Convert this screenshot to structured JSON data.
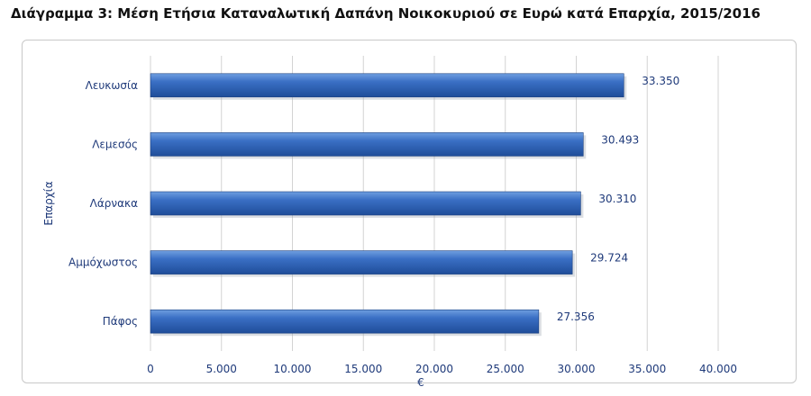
{
  "page": {
    "title": "Διάγραμμα 3: Μέση Ετήσια Καταναλωτική Δαπάνη Νοικοκυριού σε Ευρώ κατά Επαρχία, 2015/2016"
  },
  "chart_data": {
    "type": "bar",
    "orientation": "horizontal",
    "title": "Διάγραμμα 3: Μέση Ετήσια Καταναλωτική Δαπάνη Νοικοκυριού σε Ευρώ κατά Επαρχία, 2015/2016",
    "categories": [
      "Λευκωσία",
      "Λεμεσός",
      "Λάρνακα",
      "Αμμόχωστος",
      "Πάφος"
    ],
    "values": [
      33350,
      30493,
      30310,
      29724,
      27356
    ],
    "value_labels": [
      "33.350",
      "30.493",
      "30.310",
      "29.724",
      "27.356"
    ],
    "xlabel": "€",
    "ylabel": "Επαρχία",
    "xlim": [
      0,
      40000
    ],
    "x_ticks": [
      0,
      5000,
      10000,
      15000,
      20000,
      25000,
      30000,
      35000,
      40000
    ],
    "x_tick_labels": [
      "0",
      "5.000",
      "10.000",
      "15.000",
      "20.000",
      "25.000",
      "30.000",
      "35.000",
      "40.000"
    ],
    "grid": true,
    "colors": {
      "bar_light": "#6f9fe0",
      "bar_mid": "#3a6fc4",
      "bar_dark": "#1f4d99",
      "text": "#1f3a7a",
      "grid": "#d3d3d3"
    }
  }
}
